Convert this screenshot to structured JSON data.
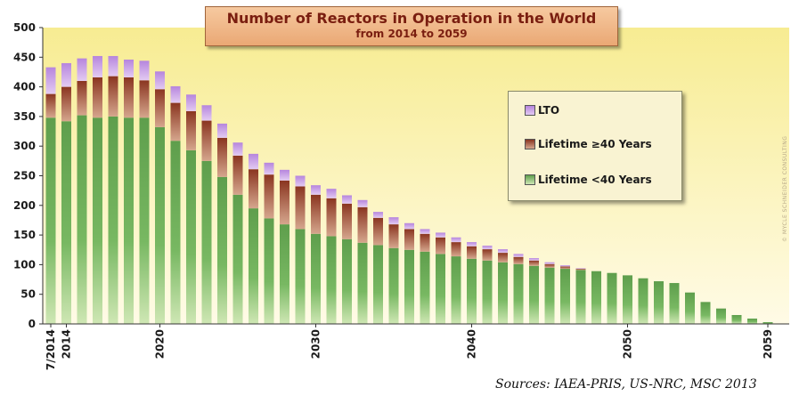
{
  "chart_data": {
    "type": "bar",
    "stacked": true,
    "title": "Number of Reactors in Operation in the World",
    "subtitle": "from 2014 to 2059",
    "ylim": [
      0,
      500
    ],
    "yticks": [
      0,
      50,
      100,
      150,
      200,
      250,
      300,
      350,
      400,
      450,
      500
    ],
    "xtick_labels": [
      {
        "index": 0,
        "label": "7/2014"
      },
      {
        "index": 1,
        "label": "2014"
      },
      {
        "index": 7,
        "label": "2020"
      },
      {
        "index": 17,
        "label": "2030"
      },
      {
        "index": 27,
        "label": "2040"
      },
      {
        "index": 37,
        "label": "2050"
      },
      {
        "index": 46,
        "label": "2059"
      }
    ],
    "categories": [
      "7/2014",
      "2014",
      "2015",
      "2016",
      "2017",
      "2018",
      "2019",
      "2020",
      "2021",
      "2022",
      "2023",
      "2024",
      "2025",
      "2026",
      "2027",
      "2028",
      "2029",
      "2030",
      "2031",
      "2032",
      "2033",
      "2034",
      "2035",
      "2036",
      "2037",
      "2038",
      "2039",
      "2040",
      "2041",
      "2042",
      "2043",
      "2044",
      "2045",
      "2046",
      "2047",
      "2048",
      "2049",
      "2050",
      "2051",
      "2052",
      "2053",
      "2054",
      "2055",
      "2056",
      "2057",
      "2058",
      "2059"
    ],
    "series": [
      {
        "name": "Lifetime <40 Years",
        "color": "#6fae5a",
        "values": [
          348,
          342,
          352,
          348,
          350,
          348,
          348,
          332,
          309,
          293,
          275,
          248,
          218,
          195,
          178,
          168,
          160,
          152,
          148,
          143,
          137,
          133,
          128,
          125,
          122,
          118,
          114,
          110,
          107,
          104,
          101,
          98,
          95,
          93,
          91,
          89,
          86,
          82,
          77,
          72,
          69,
          53,
          37,
          26,
          15,
          9,
          3
        ]
      },
      {
        "name": "Lifetime ≥40 Years",
        "color": "#a24a2a",
        "values": [
          40,
          58,
          58,
          68,
          68,
          68,
          63,
          64,
          64,
          66,
          68,
          66,
          66,
          66,
          74,
          74,
          72,
          66,
          64,
          60,
          60,
          46,
          40,
          35,
          30,
          28,
          24,
          21,
          19,
          16,
          12,
          9,
          6,
          4,
          2,
          0,
          0,
          0,
          0,
          0,
          0,
          0,
          0,
          0,
          0,
          0,
          0
        ]
      },
      {
        "name": "LTO",
        "color": "#c19ae0",
        "values": [
          45,
          40,
          38,
          36,
          34,
          30,
          33,
          30,
          28,
          28,
          26,
          24,
          22,
          26,
          20,
          18,
          18,
          16,
          16,
          14,
          12,
          10,
          12,
          10,
          8,
          8,
          8,
          7,
          6,
          6,
          5,
          4,
          3,
          2,
          1,
          0,
          0,
          0,
          0,
          0,
          0,
          0,
          0,
          0,
          0,
          0,
          0
        ]
      }
    ],
    "legend_position": "right",
    "legend_order": [
      "LTO",
      "Lifetime ≥40 Years",
      "Lifetime <40 Years"
    ],
    "grid": false,
    "source": "Sources: IAEA-PRIS, US-NRC, MSC 2013",
    "watermark": "© MYCLE SCHNEIDER CONSULTING"
  }
}
